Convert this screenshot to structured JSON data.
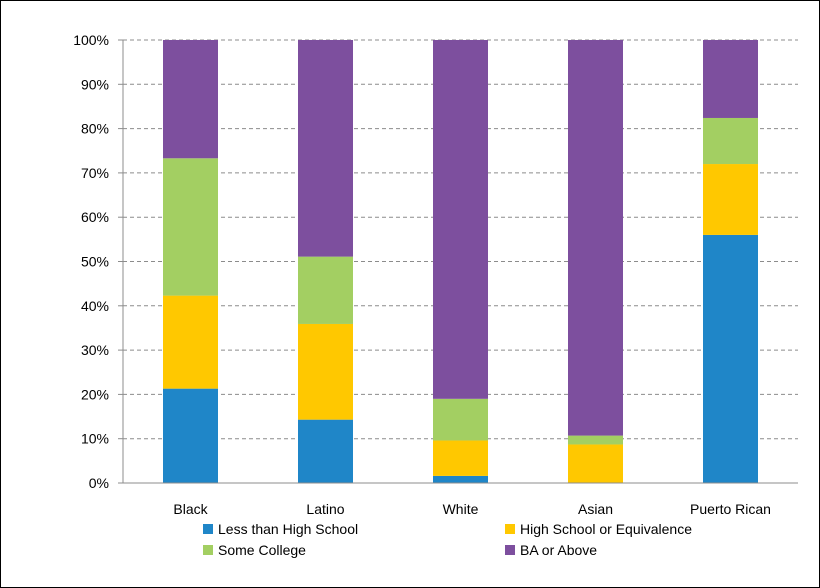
{
  "chart_data": {
    "type": "bar",
    "stacked": true,
    "title": "",
    "xlabel": "",
    "ylabel": "",
    "categories": [
      "Black",
      "Latino",
      "White",
      "Asian",
      "Puerto Rican"
    ],
    "ylim": [
      0,
      100
    ],
    "yticks": [
      "0%",
      "10%",
      "20%",
      "30%",
      "40%",
      "50%",
      "60%",
      "70%",
      "80%",
      "90%",
      "100%"
    ],
    "grid": true,
    "legend_position": "bottom",
    "series": [
      {
        "name": "Less than High School",
        "color": "#1f86c8",
        "values": [
          21.3,
          14.3,
          1.6,
          0,
          56.0
        ]
      },
      {
        "name": "High School or Equivalence",
        "color": "#ffc800",
        "values": [
          21.0,
          21.6,
          8.0,
          8.7,
          16.0
        ]
      },
      {
        "name": "Some College",
        "color": "#a3cf62",
        "values": [
          31.0,
          15.2,
          9.4,
          2.0,
          10.4
        ]
      },
      {
        "name": "BA or Above",
        "color": "#7d4f9e",
        "values": [
          26.7,
          48.9,
          81.0,
          89.3,
          17.6
        ]
      }
    ]
  }
}
